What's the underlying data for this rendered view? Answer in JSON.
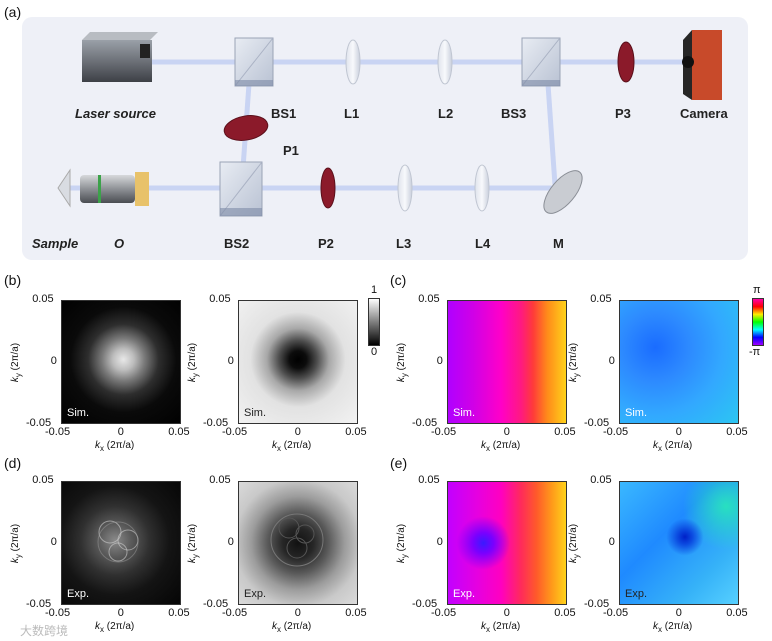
{
  "panel_labels": {
    "a": "(a)",
    "b": "(b)",
    "c": "(c)",
    "d": "(d)",
    "e": "(e)"
  },
  "setup": {
    "laser": "Laser source",
    "bs1": "BS1",
    "l1": "L1",
    "l2": "L2",
    "bs3": "BS3",
    "p3": "P3",
    "camera": "Camera",
    "p1": "P1",
    "sample": "Sample",
    "o": "O",
    "bs2": "BS2",
    "p2": "P2",
    "l3": "L3",
    "l4": "L4",
    "m": "M"
  },
  "axes": {
    "ticks": [
      "-0.05",
      "0",
      "0.05"
    ],
    "xlabel_k": "k",
    "xlabel_sub": "x",
    "ylabel_sub": "y",
    "label_unit": " (2π/a)"
  },
  "tags": {
    "sim": "Sim.",
    "exp": "Exp."
  },
  "colorbar_b": {
    "top": "1",
    "bottom": "0"
  },
  "colorbar_c": {
    "top": "π",
    "bottom": "-π"
  },
  "watermark": "大数跨境",
  "colors": {
    "beam": "#c9d4f3",
    "panel_bg": "#eef0f7",
    "red_optic": "#8b1a2a",
    "camera": "#c84a2a"
  }
}
